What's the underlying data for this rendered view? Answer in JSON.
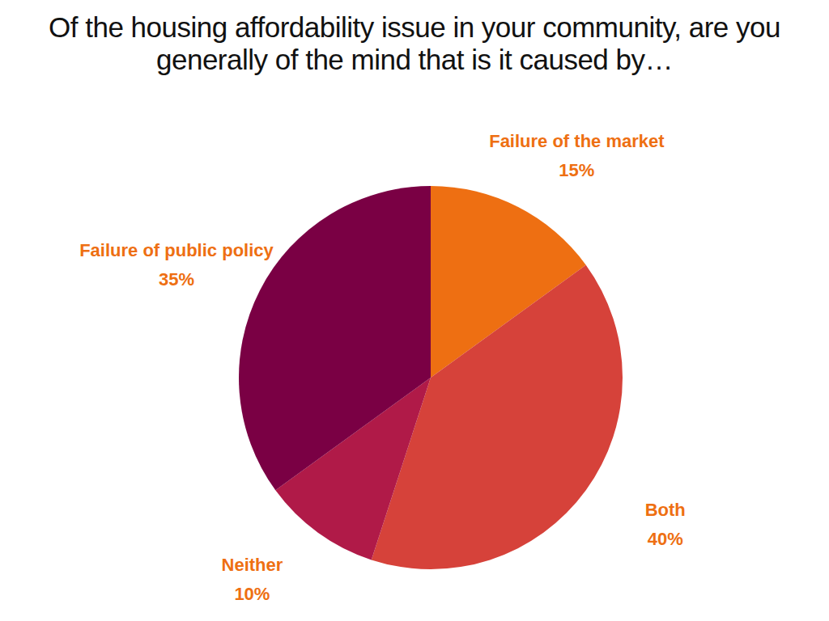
{
  "chart_data": {
    "type": "pie",
    "title": "Of the housing affordability issue in your community, are you generally of the mind that is it caused by…",
    "categories": [
      "Failure of the market",
      "Both",
      "Neither",
      "Failure of public policy"
    ],
    "values": [
      15,
      40,
      10,
      35
    ],
    "value_labels": [
      "15%",
      "40%",
      "10%",
      "35%"
    ],
    "colors": [
      "#ee6f12",
      "#d6423a",
      "#b01a48",
      "#7a0044"
    ],
    "data_labels": true
  }
}
